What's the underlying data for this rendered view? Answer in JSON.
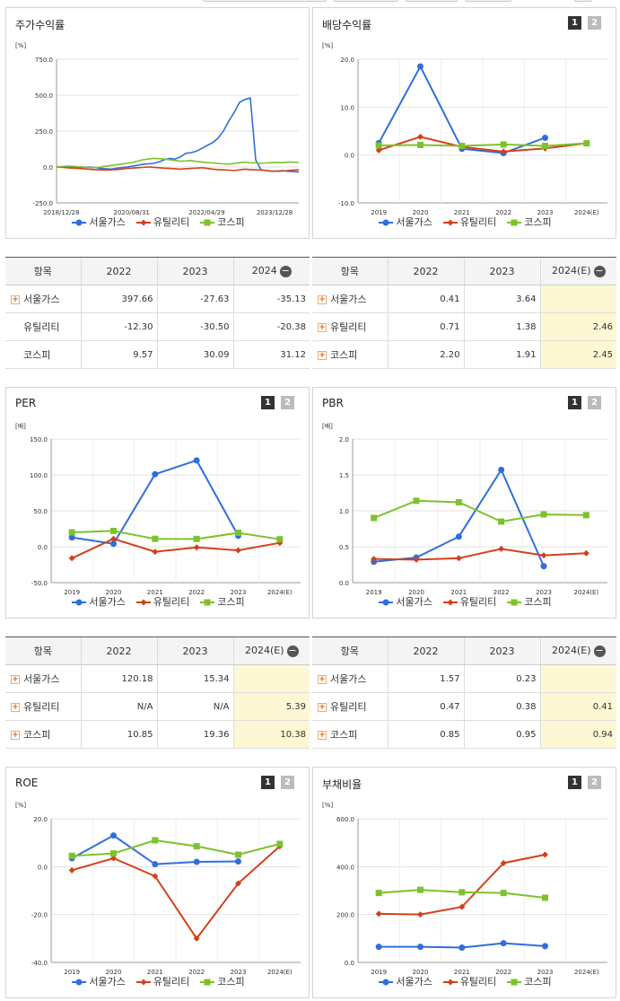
{
  "colors": {
    "seoul": "#2f6fdb",
    "util": "#d4401b",
    "kospi": "#7cc22c"
  },
  "legend": {
    "seoul": "서울가스",
    "util": "유틸리티",
    "kospi": "코스피"
  },
  "buttons": {
    "one": "1",
    "two": "2"
  },
  "p1": {
    "title": "주가수익률",
    "unit": "[%]",
    "chart_data": {
      "type": "line",
      "yticks": [
        "750.0",
        "500.0",
        "250.0",
        "0.0",
        "-250.0"
      ],
      "ylim": [
        -250,
        750
      ],
      "xticks": [
        "2018/12/28",
        "2020/08/31",
        "2022/04/29",
        "2023/12/28"
      ],
      "series": [
        {
          "name": "서울가스",
          "values": [
            0,
            2,
            5,
            1,
            -4,
            -2,
            0,
            -3,
            -8,
            -12,
            -15,
            -10,
            -5,
            0,
            5,
            12,
            18,
            22,
            25,
            35,
            50,
            60,
            55,
            70,
            95,
            100,
            110,
            130,
            150,
            170,
            200,
            250,
            320,
            380,
            450,
            470,
            480,
            50,
            -20,
            -25,
            -30,
            -28,
            -25,
            -30,
            -32,
            -35
          ]
        },
        {
          "name": "유틸리티",
          "values": [
            0,
            -2,
            -5,
            -8,
            -10,
            -12,
            -15,
            -18,
            -20,
            -22,
            -20,
            -18,
            -15,
            -10,
            -8,
            -5,
            -3,
            0,
            -2,
            -5,
            -8,
            -10,
            -12,
            -15,
            -12,
            -10,
            -8,
            -5,
            -10,
            -15,
            -18,
            -20,
            -22,
            -25,
            -20,
            -15,
            -18,
            -20,
            -22,
            -25,
            -28,
            -30,
            -28,
            -25,
            -22,
            -20
          ]
        },
        {
          "name": "코스피",
          "values": [
            0,
            3,
            6,
            5,
            2,
            0,
            -3,
            -5,
            -2,
            5,
            10,
            15,
            20,
            25,
            30,
            40,
            50,
            55,
            60,
            58,
            55,
            50,
            45,
            40,
            42,
            45,
            38,
            35,
            30,
            28,
            25,
            22,
            20,
            25,
            30,
            35,
            28,
            30,
            25,
            28,
            30,
            32,
            30,
            35,
            33,
            31
          ]
        }
      ]
    }
  },
  "p2": {
    "title": "배당수익률",
    "unit": "[%]",
    "chart_data": {
      "type": "line",
      "yticks": [
        "20.0",
        "10.0",
        "0.0",
        "-10.0"
      ],
      "ylim": [
        -10,
        20
      ],
      "categories": [
        "2019",
        "2020",
        "2021",
        "2022",
        "2023",
        "2024(E)"
      ],
      "series": [
        {
          "name": "서울가스",
          "values": [
            2.5,
            18.5,
            1.3,
            0.4,
            3.6,
            null
          ]
        },
        {
          "name": "유틸리티",
          "values": [
            1.0,
            3.8,
            1.7,
            0.71,
            1.38,
            2.46
          ]
        },
        {
          "name": "코스피",
          "values": [
            2.0,
            2.1,
            1.9,
            2.2,
            1.91,
            2.45
          ]
        }
      ]
    }
  },
  "t1": {
    "headers": [
      "항목",
      "2022",
      "2023",
      "2024"
    ],
    "rows": [
      [
        "서울가스",
        "397.66",
        "-27.63",
        "-35.13"
      ],
      [
        "유틸리티",
        "-12.30",
        "-30.50",
        "-20.38"
      ],
      [
        "코스피",
        "9.57",
        "30.09",
        "31.12"
      ]
    ]
  },
  "t2": {
    "headers": [
      "항목",
      "2022",
      "2023",
      "2024(E)"
    ],
    "rows": [
      [
        "서울가스",
        "0.41",
        "3.64",
        ""
      ],
      [
        "유틸리티",
        "0.71",
        "1.38",
        "2.46"
      ],
      [
        "코스피",
        "2.20",
        "1.91",
        "2.45"
      ]
    ]
  },
  "p3": {
    "title": "PER",
    "unit": "[배]",
    "chart_data": {
      "type": "line",
      "yticks": [
        "150.0",
        "100.0",
        "50.0",
        "0.0",
        "-50.0"
      ],
      "ylim": [
        -50,
        150
      ],
      "categories": [
        "2019",
        "2020",
        "2021",
        "2022",
        "2023",
        "2024(E)"
      ],
      "series": [
        {
          "name": "서울가스",
          "values": [
            13,
            4,
            101,
            120.18,
            15.34,
            null
          ]
        },
        {
          "name": "유틸리티",
          "values": [
            -16,
            11,
            -7,
            -1,
            -5,
            5.39
          ]
        },
        {
          "name": "코스피",
          "values": [
            20,
            22,
            11,
            10.85,
            19.36,
            10.38
          ]
        }
      ]
    }
  },
  "p4": {
    "title": "PBR",
    "unit": "[배]",
    "chart_data": {
      "type": "line",
      "yticks": [
        "2.0",
        "1.5",
        "1.0",
        "0.5",
        "0.0"
      ],
      "ylim": [
        0,
        2
      ],
      "categories": [
        "2019",
        "2020",
        "2021",
        "2022",
        "2023",
        "2024(E)"
      ],
      "series": [
        {
          "name": "서울가스",
          "values": [
            0.29,
            0.35,
            0.64,
            1.57,
            0.23,
            null
          ]
        },
        {
          "name": "유틸리티",
          "values": [
            0.33,
            0.32,
            0.34,
            0.47,
            0.38,
            0.41
          ]
        },
        {
          "name": "코스피",
          "values": [
            0.9,
            1.14,
            1.12,
            0.85,
            0.95,
            0.94
          ]
        }
      ]
    }
  },
  "t3": {
    "headers": [
      "항목",
      "2022",
      "2023",
      "2024(E)"
    ],
    "rows": [
      [
        "서울가스",
        "120.18",
        "15.34",
        ""
      ],
      [
        "유틸리티",
        "N/A",
        "N/A",
        "5.39"
      ],
      [
        "코스피",
        "10.85",
        "19.36",
        "10.38"
      ]
    ]
  },
  "t4": {
    "headers": [
      "항목",
      "2022",
      "2023",
      "2024(E)"
    ],
    "rows": [
      [
        "서울가스",
        "1.57",
        "0.23",
        ""
      ],
      [
        "유틸리티",
        "0.47",
        "0.38",
        "0.41"
      ],
      [
        "코스피",
        "0.85",
        "0.95",
        "0.94"
      ]
    ]
  },
  "p5": {
    "title": "ROE",
    "unit": "[%]",
    "chart_data": {
      "type": "line",
      "yticks": [
        "20.0",
        "0.0",
        "-20.0",
        "-40.0"
      ],
      "ylim": [
        -40,
        20
      ],
      "categories": [
        "2019",
        "2020",
        "2021",
        "2022",
        "2023",
        "2024(E)"
      ],
      "series": [
        {
          "name": "서울가스",
          "values": [
            3.5,
            13,
            1,
            2,
            2.2,
            null
          ]
        },
        {
          "name": "유틸리티",
          "values": [
            -1.5,
            3.5,
            -4,
            -30,
            -7,
            8.5
          ]
        },
        {
          "name": "코스피",
          "values": [
            4.5,
            5.5,
            11,
            8.5,
            5,
            9.5
          ]
        }
      ]
    }
  },
  "p6": {
    "title": "부채비율",
    "unit": "[%]",
    "chart_data": {
      "type": "line",
      "yticks": [
        "600.0",
        "400.0",
        "200.0",
        "0.0"
      ],
      "ylim": [
        0,
        600
      ],
      "categories": [
        "2019",
        "2020",
        "2021",
        "2022",
        "2023",
        "2024(E)"
      ],
      "series": [
        {
          "name": "서울가스",
          "values": [
            65,
            65,
            62,
            80,
            68,
            null
          ]
        },
        {
          "name": "유틸리티",
          "values": [
            203,
            200,
            232,
            415,
            450,
            null
          ]
        },
        {
          "name": "코스피",
          "values": [
            290,
            303,
            293,
            290,
            270,
            null
          ]
        }
      ]
    }
  }
}
